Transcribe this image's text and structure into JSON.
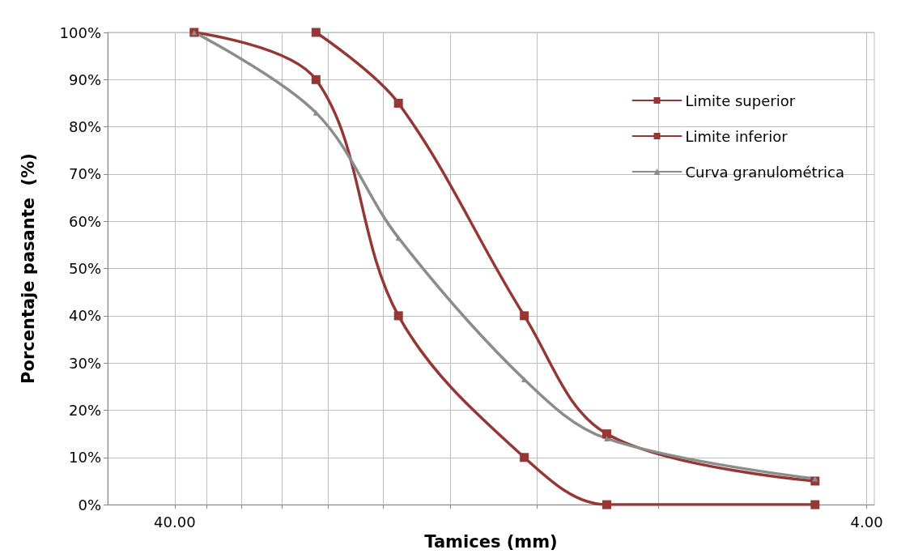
{
  "chart_data": {
    "type": "line",
    "xlabel": "Tamices (mm)",
    "ylabel": "Porcentaje pasante  (%)",
    "log": "x",
    "grid": true,
    "legend": "top right",
    "line_style": "solid",
    "xlim": [
      50,
      3.9
    ],
    "xticks": [
      {
        "value": 40,
        "label": "40.00"
      },
      {
        "value": 36,
        "label": null
      },
      {
        "value": 32,
        "label": null
      },
      {
        "value": 28,
        "label": null
      },
      {
        "value": 24,
        "label": null
      },
      {
        "value": 20,
        "label": null
      },
      {
        "value": 16,
        "label": null
      },
      {
        "value": 12,
        "label": null
      },
      {
        "value": 8,
        "label": null
      },
      {
        "value": 4,
        "label": "4.00"
      }
    ],
    "ylim": [
      0,
      100
    ],
    "yticks": [
      {
        "value": 0,
        "label": "0%"
      },
      {
        "value": 10,
        "label": "10%"
      },
      {
        "value": 20,
        "label": "20%"
      },
      {
        "value": 30,
        "label": "30%"
      },
      {
        "value": 40,
        "label": "40%"
      },
      {
        "value": 50,
        "label": "50%"
      },
      {
        "value": 60,
        "label": "60%"
      },
      {
        "value": 70,
        "label": "70%"
      },
      {
        "value": 80,
        "label": "80%"
      },
      {
        "value": 90,
        "label": "90%"
      },
      {
        "value": 100,
        "label": "100%"
      }
    ],
    "series": [
      {
        "name": "Limite superior",
        "color": "#953735",
        "marker": "square",
        "x": [
          25,
          19,
          12.5,
          9.5,
          4.75
        ],
        "values": [
          100,
          85,
          40,
          15,
          5
        ]
      },
      {
        "name": "Limite inferior",
        "color": "#953735",
        "marker": "square",
        "x": [
          37.5,
          25,
          19,
          12.5,
          9.5,
          4.75
        ],
        "values": [
          100,
          90,
          40,
          10,
          0,
          0
        ]
      },
      {
        "name": "Curva granulométrica",
        "color": "#8c8c8c",
        "marker": "triangle",
        "x": [
          37.5,
          25,
          19,
          12.5,
          9.5,
          4.75
        ],
        "values": [
          100,
          83,
          56.5,
          26.5,
          14,
          5.5
        ]
      }
    ]
  }
}
